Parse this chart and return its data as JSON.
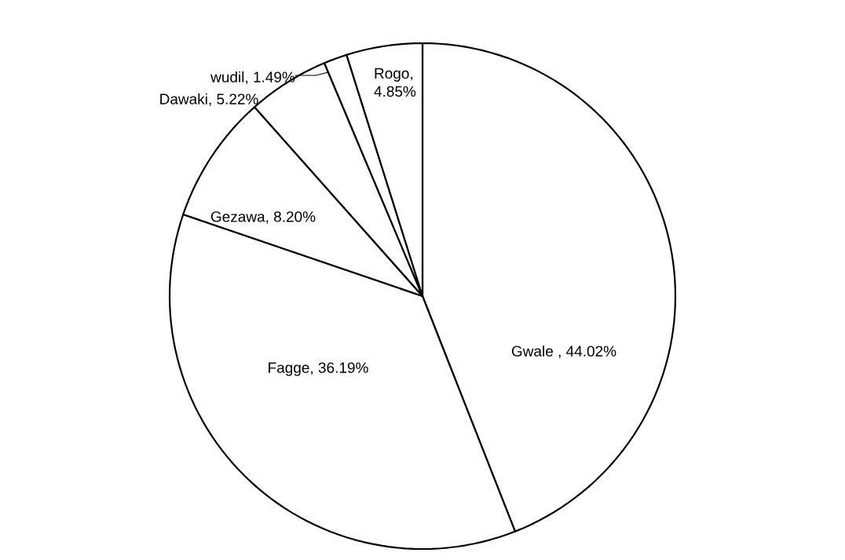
{
  "chart_data": {
    "type": "pie",
    "categories": [
      "Gwale",
      "Fagge",
      "Gezawa",
      "Dawaki",
      "wudil",
      "Rogo"
    ],
    "values": [
      44.02,
      36.19,
      8.2,
      5.22,
      1.49,
      4.85
    ],
    "colors": [
      "#ffffff",
      "#ffffff",
      "#ffffff",
      "#ffffff",
      "#ffffff",
      "#ffffff"
    ],
    "value_labels": [
      ", 44.02%",
      ", 36.19%",
      ", 8.20%",
      ", 5.22%",
      ", 1.49%",
      ", 4.85%"
    ]
  }
}
